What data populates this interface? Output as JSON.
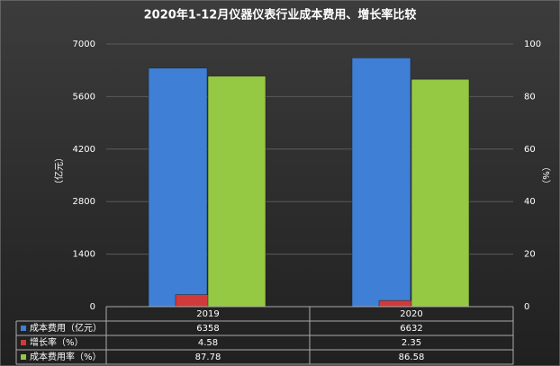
{
  "chart_data": {
    "type": "bar",
    "title": "2020年1-12月仪器仪表行业成本费用、增长率比较",
    "y_label": "（亿元）",
    "y2_label": "（%）",
    "categories": [
      "2019",
      "2020"
    ],
    "series": [
      {
        "name": "成本费用（亿元）",
        "color": "#3f7fd6",
        "values": [
          6358,
          6632
        ]
      },
      {
        "name": "增长率（%）",
        "color": "#d03a3a",
        "values": [
          4.58,
          2.35
        ],
        "axis": "y2"
      },
      {
        "name": "成本费用率（%）",
        "color": "#95c843",
        "values": [
          87.78,
          86.58
        ],
        "axis": "y2"
      }
    ],
    "ylim": [
      0,
      7000
    ],
    "yticks": [
      0,
      1400,
      2800,
      4200,
      5600,
      7000
    ],
    "y2lim": [
      0,
      100
    ],
    "y2ticks": [
      0,
      20,
      40,
      60,
      80,
      100
    ],
    "grid": true
  }
}
